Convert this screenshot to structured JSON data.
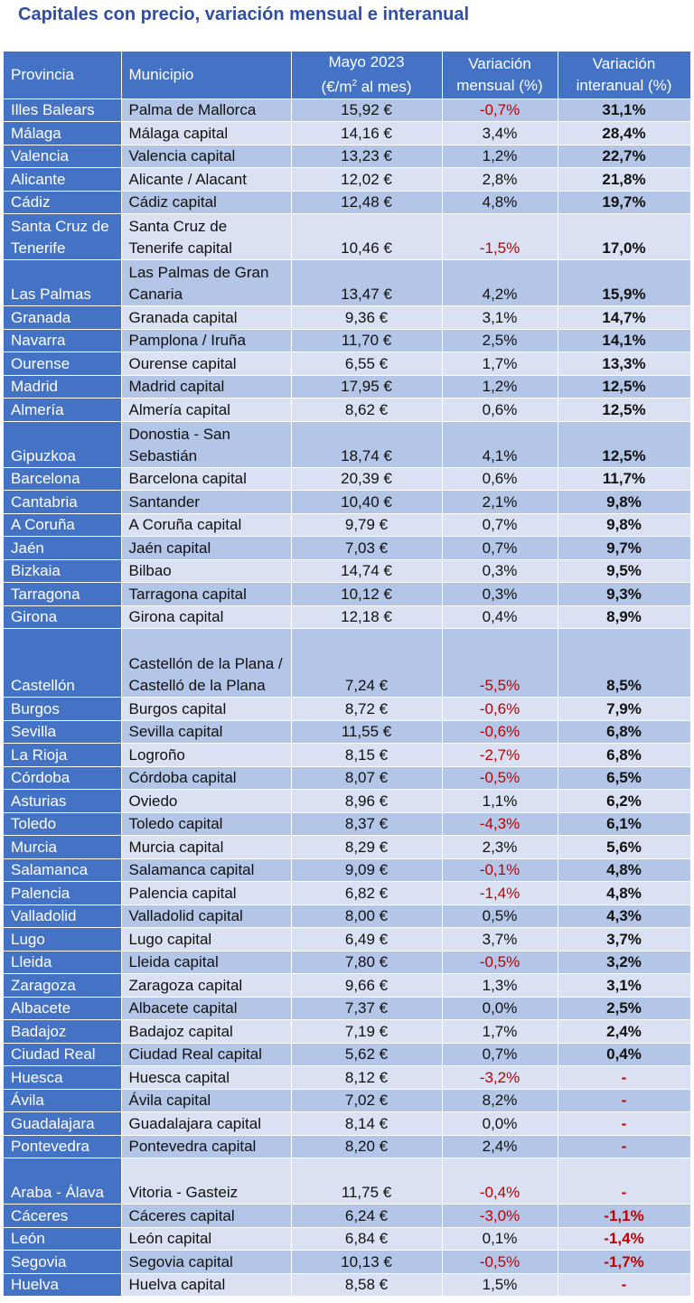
{
  "title": "Capitales con precio, variación mensual e interanual",
  "headers": {
    "provincia": "Provincia",
    "municipio": "Municipio",
    "precio_l1": "Mayo 2023",
    "precio_l2_pre": "(€/m",
    "precio_l2_sup": "2",
    "precio_l2_post": " al mes)",
    "mensual_l1": "Variación",
    "mensual_l2": "mensual (%)",
    "interanual_l1": "Variación",
    "interanual_l2": "interanual (%)"
  },
  "rows": [
    {
      "provincia": "Illes Balears",
      "municipio": "Palma de Mallorca",
      "precio": "15,92 €",
      "mensual": "-0,7%",
      "interanual": "31,1%"
    },
    {
      "provincia": "Málaga",
      "municipio": "Málaga capital",
      "precio": "14,16 €",
      "mensual": "3,4%",
      "interanual": "28,4%"
    },
    {
      "provincia": "Valencia",
      "municipio": "Valencia capital",
      "precio": "13,23 €",
      "mensual": "1,2%",
      "interanual": "22,7%"
    },
    {
      "provincia": "Alicante",
      "municipio": "Alicante / Alacant",
      "precio": "12,02 €",
      "mensual": "2,8%",
      "interanual": "21,8%"
    },
    {
      "provincia": "Cádiz",
      "municipio": "Cádiz capital",
      "precio": "12,48 €",
      "mensual": "4,8%",
      "interanual": "19,7%"
    },
    {
      "provincia": "Santa Cruz de Tenerife",
      "municipio": "Santa Cruz de Tenerife capital",
      "precio": "10,46 €",
      "mensual": "-1,5%",
      "interanual": "17,0%"
    },
    {
      "provincia": "Las Palmas",
      "municipio": "Las Palmas de Gran Canaria",
      "precio": "13,47 €",
      "mensual": "4,2%",
      "interanual": "15,9%"
    },
    {
      "provincia": "Granada",
      "municipio": "Granada capital",
      "precio": "9,36 €",
      "mensual": "3,1%",
      "interanual": "14,7%"
    },
    {
      "provincia": "Navarra",
      "municipio": "Pamplona / Iruña",
      "precio": "11,70 €",
      "mensual": "2,5%",
      "interanual": "14,1%"
    },
    {
      "provincia": "Ourense",
      "municipio": "Ourense capital",
      "precio": "6,55 €",
      "mensual": "1,7%",
      "interanual": "13,3%"
    },
    {
      "provincia": "Madrid",
      "municipio": "Madrid capital",
      "precio": "17,95 €",
      "mensual": "1,2%",
      "interanual": "12,5%"
    },
    {
      "provincia": "Almería",
      "municipio": "Almería capital",
      "precio": "8,62 €",
      "mensual": "0,6%",
      "interanual": "12,5%"
    },
    {
      "provincia": "Gipuzkoa",
      "municipio": "Donostia - San Sebastián",
      "precio": "18,74 €",
      "mensual": "4,1%",
      "interanual": "12,5%"
    },
    {
      "provincia": "Barcelona",
      "municipio": "Barcelona capital",
      "precio": "20,39 €",
      "mensual": "0,6%",
      "interanual": "11,7%"
    },
    {
      "provincia": "Cantabria",
      "municipio": "Santander",
      "precio": "10,40 €",
      "mensual": "2,1%",
      "interanual": "9,8%"
    },
    {
      "provincia": "A Coruña",
      "municipio": "A Coruña capital",
      "precio": "9,79 €",
      "mensual": "0,7%",
      "interanual": "9,8%"
    },
    {
      "provincia": "Jaén",
      "municipio": "Jaén capital",
      "precio": "7,03 €",
      "mensual": "0,7%",
      "interanual": "9,7%"
    },
    {
      "provincia": "Bizkaia",
      "municipio": "Bilbao",
      "precio": "14,74 €",
      "mensual": "0,3%",
      "interanual": "9,5%"
    },
    {
      "provincia": "Tarragona",
      "municipio": "Tarragona capital",
      "precio": "10,12 €",
      "mensual": "0,3%",
      "interanual": "9,3%"
    },
    {
      "provincia": "Girona",
      "municipio": "Girona capital",
      "precio": "12,18 €",
      "mensual": "0,4%",
      "interanual": "8,9%"
    },
    {
      "provincia": "Castellón",
      "municipio": "Castellón de la Plana / Castelló de la Plana",
      "precio": "7,24 €",
      "mensual": "-5,5%",
      "interanual": "8,5%"
    },
    {
      "provincia": "Burgos",
      "municipio": "Burgos capital",
      "precio": "8,72 €",
      "mensual": "-0,6%",
      "interanual": "7,9%"
    },
    {
      "provincia": "Sevilla",
      "municipio": "Sevilla capital",
      "precio": "11,55 €",
      "mensual": "-0,6%",
      "interanual": "6,8%"
    },
    {
      "provincia": "La Rioja",
      "municipio": "Logroño",
      "precio": "8,15 €",
      "mensual": "-2,7%",
      "interanual": "6,8%"
    },
    {
      "provincia": "Córdoba",
      "municipio": "Córdoba capital",
      "precio": "8,07 €",
      "mensual": "-0,5%",
      "interanual": "6,5%"
    },
    {
      "provincia": "Asturias",
      "municipio": "Oviedo",
      "precio": "8,96 €",
      "mensual": "1,1%",
      "interanual": "6,2%"
    },
    {
      "provincia": "Toledo",
      "municipio": "Toledo capital",
      "precio": "8,37 €",
      "mensual": "-4,3%",
      "interanual": "6,1%"
    },
    {
      "provincia": "Murcia",
      "municipio": "Murcia capital",
      "precio": "8,29 €",
      "mensual": "2,3%",
      "interanual": "5,6%"
    },
    {
      "provincia": "Salamanca",
      "municipio": "Salamanca capital",
      "precio": "9,09 €",
      "mensual": "-0,1%",
      "interanual": "4,8%"
    },
    {
      "provincia": "Palencia",
      "municipio": "Palencia capital",
      "precio": "6,82 €",
      "mensual": "-1,4%",
      "interanual": "4,8%"
    },
    {
      "provincia": "Valladolid",
      "municipio": "Valladolid capital",
      "precio": "8,00 €",
      "mensual": "0,5%",
      "interanual": "4,3%"
    },
    {
      "provincia": "Lugo",
      "municipio": "Lugo capital",
      "precio": "6,49 €",
      "mensual": "3,7%",
      "interanual": "3,7%"
    },
    {
      "provincia": "Lleida",
      "municipio": "Lleida capital",
      "precio": "7,80 €",
      "mensual": "-0,5%",
      "interanual": "3,2%"
    },
    {
      "provincia": "Zaragoza",
      "municipio": "Zaragoza capital",
      "precio": "9,66 €",
      "mensual": "1,3%",
      "interanual": "3,1%"
    },
    {
      "provincia": "Albacete",
      "municipio": "Albacete capital",
      "precio": "7,37 €",
      "mensual": "0,0%",
      "interanual": "2,5%"
    },
    {
      "provincia": "Badajoz",
      "municipio": "Badajoz capital",
      "precio": "7,19 €",
      "mensual": "1,7%",
      "interanual": "2,4%"
    },
    {
      "provincia": "Ciudad Real",
      "municipio": "Ciudad Real capital",
      "precio": "5,62 €",
      "mensual": "0,7%",
      "interanual": "0,4%"
    },
    {
      "provincia": "Huesca",
      "municipio": "Huesca capital",
      "precio": "8,12 €",
      "mensual": "-3,2%",
      "interanual": "-"
    },
    {
      "provincia": "Ávila",
      "municipio": "Ávila capital",
      "precio": "7,02 €",
      "mensual": "8,2%",
      "interanual": "-"
    },
    {
      "provincia": "Guadalajara",
      "municipio": "Guadalajara capital",
      "precio": "8,14 €",
      "mensual": "0,0%",
      "interanual": "-"
    },
    {
      "provincia": "Pontevedra",
      "municipio": "Pontevedra capital",
      "precio": "8,20 €",
      "mensual": "2,4%",
      "interanual": "-"
    },
    {
      "provincia": "Araba - Álava",
      "municipio": "Vitoria - Gasteiz",
      "precio": "11,75 €",
      "mensual": "-0,4%",
      "interanual": "-"
    },
    {
      "provincia": "Cáceres",
      "municipio": "Cáceres capital",
      "precio": "6,24 €",
      "mensual": "-3,0%",
      "interanual": "-1,1%"
    },
    {
      "provincia": "León",
      "municipio": "León capital",
      "precio": "6,84 €",
      "mensual": "0,1%",
      "interanual": "-1,4%"
    },
    {
      "provincia": "Segovia",
      "municipio": "Segovia capital",
      "precio": "10,13 €",
      "mensual": "-0,5%",
      "interanual": "-1,7%"
    },
    {
      "provincia": "Huelva",
      "municipio": "Huelva capital",
      "precio": "8,58 €",
      "mensual": "1,5%",
      "interanual": "-"
    }
  ],
  "colors": {
    "header_bg": "#4472c4",
    "row_odd": "#b4c6e7",
    "row_even": "#d9e1f2",
    "negative_text": "#c00000",
    "title_text": "#2f4fa6"
  }
}
